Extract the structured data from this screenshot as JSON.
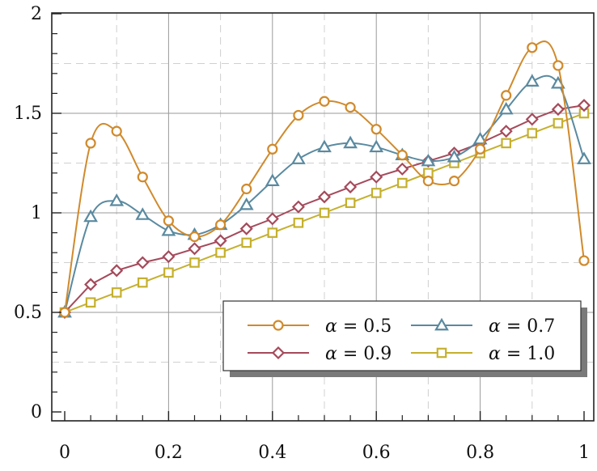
{
  "chart_data": {
    "type": "line",
    "xlim": [
      0,
      1
    ],
    "ylim": [
      0,
      2
    ],
    "x_ticks": [
      0,
      0.2,
      0.4,
      0.6,
      0.8,
      1
    ],
    "x_tick_labels": [
      "0",
      "0.2",
      "0.4",
      "0.6",
      "0.8",
      "1"
    ],
    "y_ticks": [
      0,
      0.5,
      1,
      1.5,
      2
    ],
    "y_tick_labels": [
      "0",
      "0.5",
      "1",
      "1.5",
      "2"
    ],
    "grid": true,
    "legend_placement": "bottom-right",
    "x": [
      0,
      0.05,
      0.1,
      0.15,
      0.2,
      0.25,
      0.3,
      0.35,
      0.4,
      0.45,
      0.5,
      0.55,
      0.6,
      0.65,
      0.7,
      0.75,
      0.8,
      0.85,
      0.9,
      0.95,
      1.0
    ],
    "series": [
      {
        "name": "α = 0.5",
        "legend_symbol": "α",
        "legend_value": "= 0.5",
        "color": "#d08a2c",
        "marker": "circle",
        "values": [
          0.5,
          1.35,
          1.41,
          1.18,
          0.96,
          0.88,
          0.94,
          1.12,
          1.32,
          1.49,
          1.56,
          1.53,
          1.42,
          1.29,
          1.16,
          1.16,
          1.32,
          1.59,
          1.83,
          1.74,
          0.76
        ]
      },
      {
        "name": "α = 0.7",
        "legend_symbol": "α",
        "legend_value": "= 0.7",
        "color": "#5a8aa0",
        "marker": "triangle",
        "values": [
          0.5,
          0.98,
          1.06,
          0.99,
          0.91,
          0.89,
          0.94,
          1.04,
          1.16,
          1.27,
          1.33,
          1.35,
          1.33,
          1.29,
          1.26,
          1.28,
          1.37,
          1.52,
          1.66,
          1.65,
          1.27
        ]
      },
      {
        "name": "α = 0.9",
        "legend_symbol": "α",
        "legend_value": "= 0.9",
        "color": "#a54a5b",
        "marker": "diamond",
        "values": [
          0.5,
          0.64,
          0.71,
          0.75,
          0.78,
          0.82,
          0.86,
          0.92,
          0.97,
          1.03,
          1.08,
          1.13,
          1.18,
          1.22,
          1.26,
          1.3,
          1.35,
          1.41,
          1.47,
          1.52,
          1.54
        ]
      },
      {
        "name": "α = 1.0",
        "legend_symbol": "α",
        "legend_value": "= 1.0",
        "color": "#c5b02e",
        "marker": "square",
        "values": [
          0.5,
          0.55,
          0.6,
          0.65,
          0.7,
          0.75,
          0.8,
          0.85,
          0.9,
          0.95,
          1.0,
          1.05,
          1.1,
          1.15,
          1.2,
          1.25,
          1.3,
          1.35,
          1.4,
          1.45,
          1.5
        ]
      }
    ]
  }
}
